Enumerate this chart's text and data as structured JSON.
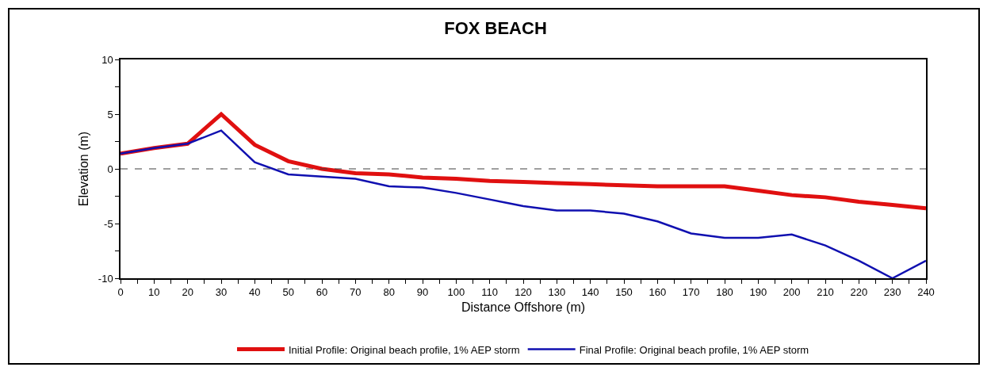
{
  "chart_data": {
    "type": "line",
    "title": "FOX BEACH",
    "xlabel": "Distance Offshore (m)",
    "ylabel": "Elevation (m)",
    "x": [
      0,
      10,
      20,
      30,
      40,
      50,
      60,
      70,
      80,
      90,
      100,
      110,
      120,
      130,
      140,
      150,
      160,
      170,
      180,
      190,
      200,
      210,
      220,
      230,
      240
    ],
    "series": [
      {
        "name": "Initial Profile: Original beach profile, 1% AEP storm",
        "color": "#e01010",
        "values": [
          1.4,
          1.9,
          2.3,
          5.0,
          2.2,
          0.7,
          0.0,
          -0.4,
          -0.5,
          -0.8,
          -0.9,
          -1.1,
          -1.2,
          -1.3,
          -1.4,
          -1.5,
          -1.6,
          -1.6,
          -1.6,
          -2.0,
          -2.4,
          -2.6,
          -3.0,
          -3.3,
          -3.6
        ]
      },
      {
        "name": "Final Profile: Original beach profile, 1% AEP storm",
        "color": "#1010b0",
        "values": [
          1.4,
          1.9,
          2.3,
          3.5,
          0.6,
          -0.5,
          -0.7,
          -0.9,
          -1.6,
          -1.7,
          -2.2,
          -2.8,
          -3.4,
          -3.8,
          -3.8,
          -4.1,
          -4.8,
          -5.9,
          -6.3,
          -6.3,
          -6.0,
          -7.0,
          -8.4,
          -10.0,
          -8.4
        ]
      }
    ],
    "xlim": [
      0,
      240
    ],
    "xticks": [
      0,
      {
        "value": 5,
        "label": null
      },
      10,
      {
        "value": 15,
        "label": null
      },
      20,
      {
        "value": 25,
        "label": null
      },
      30,
      {
        "value": 35,
        "label": null
      },
      40,
      {
        "value": 45,
        "label": null
      },
      50,
      {
        "value": 55,
        "label": null
      },
      60,
      {
        "value": 65,
        "label": null
      },
      70,
      {
        "value": 75,
        "label": null
      },
      80,
      {
        "value": 85,
        "label": null
      },
      90,
      {
        "value": 95,
        "label": null
      },
      100,
      {
        "value": 105,
        "label": null
      },
      110,
      {
        "value": 115,
        "label": null
      },
      120,
      {
        "value": 125,
        "label": null
      },
      130,
      {
        "value": 135,
        "label": null
      },
      140,
      {
        "value": 145,
        "label": null
      },
      150,
      {
        "value": 155,
        "label": null
      },
      160,
      {
        "value": 165,
        "label": null
      },
      170,
      {
        "value": 175,
        "label": null
      },
      180,
      {
        "value": 185,
        "label": null
      },
      190,
      {
        "value": 195,
        "label": null
      },
      200,
      {
        "value": 205,
        "label": null
      },
      210,
      {
        "value": 215,
        "label": null
      },
      220,
      {
        "value": 225,
        "label": null
      },
      230,
      {
        "value": 235,
        "label": null
      },
      240
    ],
    "ylim": [
      -10,
      10
    ],
    "yticks": [
      -10,
      {
        "value": -7.5,
        "label": null
      },
      -5,
      {
        "value": -2.5,
        "label": null
      },
      0,
      {
        "value": 2.5,
        "label": null
      },
      5,
      {
        "value": 7.5,
        "label": null
      },
      10
    ],
    "ref_lines": [
      {
        "axis": "y",
        "value": 0,
        "color": "#404040",
        "line_style": "dashed"
      }
    ],
    "grid": false,
    "legend": "bottom",
    "marker": "none",
    "line_style": "solid"
  }
}
